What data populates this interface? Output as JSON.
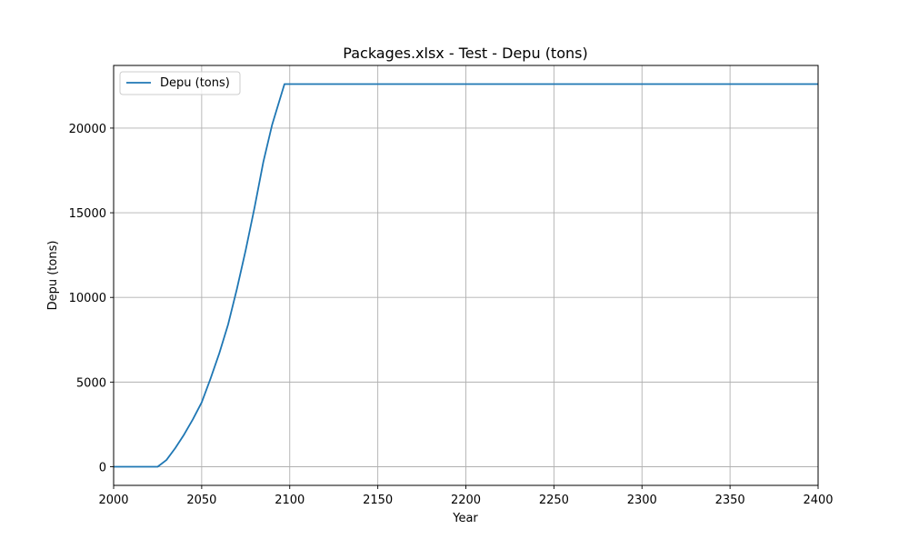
{
  "chart_data": {
    "type": "line",
    "title": "Packages.xlsx - Test - Depu (tons)",
    "xlabel": "Year",
    "ylabel": "Depu (tons)",
    "xlim": [
      2000,
      2400
    ],
    "ylim": [
      -1100,
      23700
    ],
    "x_ticks": [
      2000,
      2050,
      2100,
      2150,
      2200,
      2250,
      2300,
      2350,
      2400
    ],
    "y_ticks": [
      0,
      5000,
      10000,
      15000,
      20000
    ],
    "grid": true,
    "legend_position": "upper-left",
    "series": [
      {
        "name": "Depu (tons)",
        "color": "#1f77b4",
        "points": [
          [
            2000,
            0
          ],
          [
            2025,
            0
          ],
          [
            2030,
            400
          ],
          [
            2035,
            1100
          ],
          [
            2040,
            1900
          ],
          [
            2045,
            2800
          ],
          [
            2050,
            3800
          ],
          [
            2055,
            5200
          ],
          [
            2060,
            6700
          ],
          [
            2065,
            8400
          ],
          [
            2070,
            10500
          ],
          [
            2075,
            12800
          ],
          [
            2080,
            15300
          ],
          [
            2085,
            18000
          ],
          [
            2090,
            20200
          ],
          [
            2097,
            22600
          ],
          [
            2400,
            22600
          ]
        ]
      }
    ]
  }
}
